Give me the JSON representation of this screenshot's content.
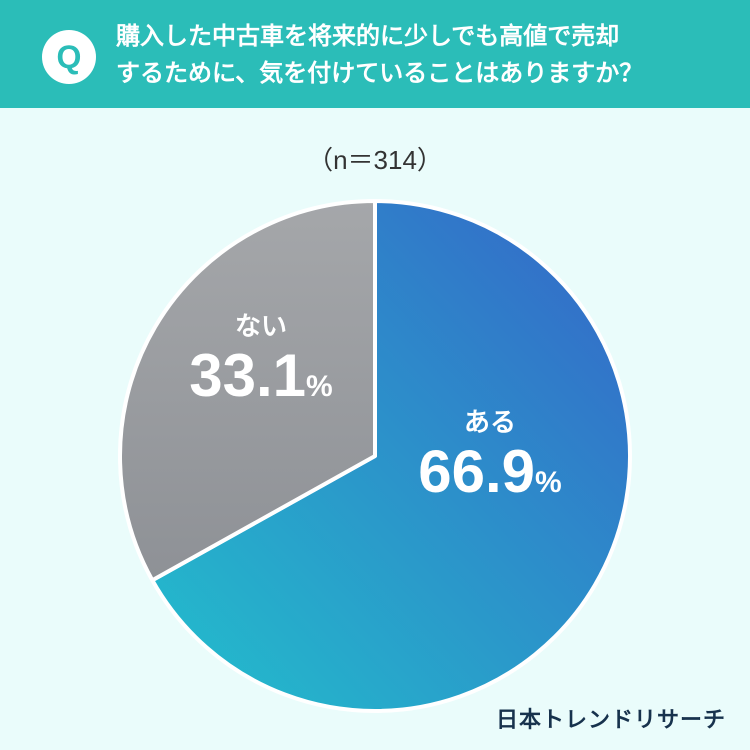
{
  "header": {
    "badge": "Q",
    "question_line1": "購入した中古車を将来的に少しでも高値で売却",
    "question_line2": "するために、気を付けていることはありますか？"
  },
  "sample_size": "（n＝314）",
  "chart_data": {
    "type": "pie",
    "categories": [
      "ある",
      "ない"
    ],
    "values": [
      66.9,
      33.1
    ],
    "value_labels": [
      "66.9",
      "33.1"
    ],
    "unit": "%",
    "colors": [
      "#2f6fcb",
      "#a7a9ad"
    ],
    "start_angle": "12 o'clock",
    "direction": "clockwise"
  },
  "logo": "日本トレンドリサーチ"
}
